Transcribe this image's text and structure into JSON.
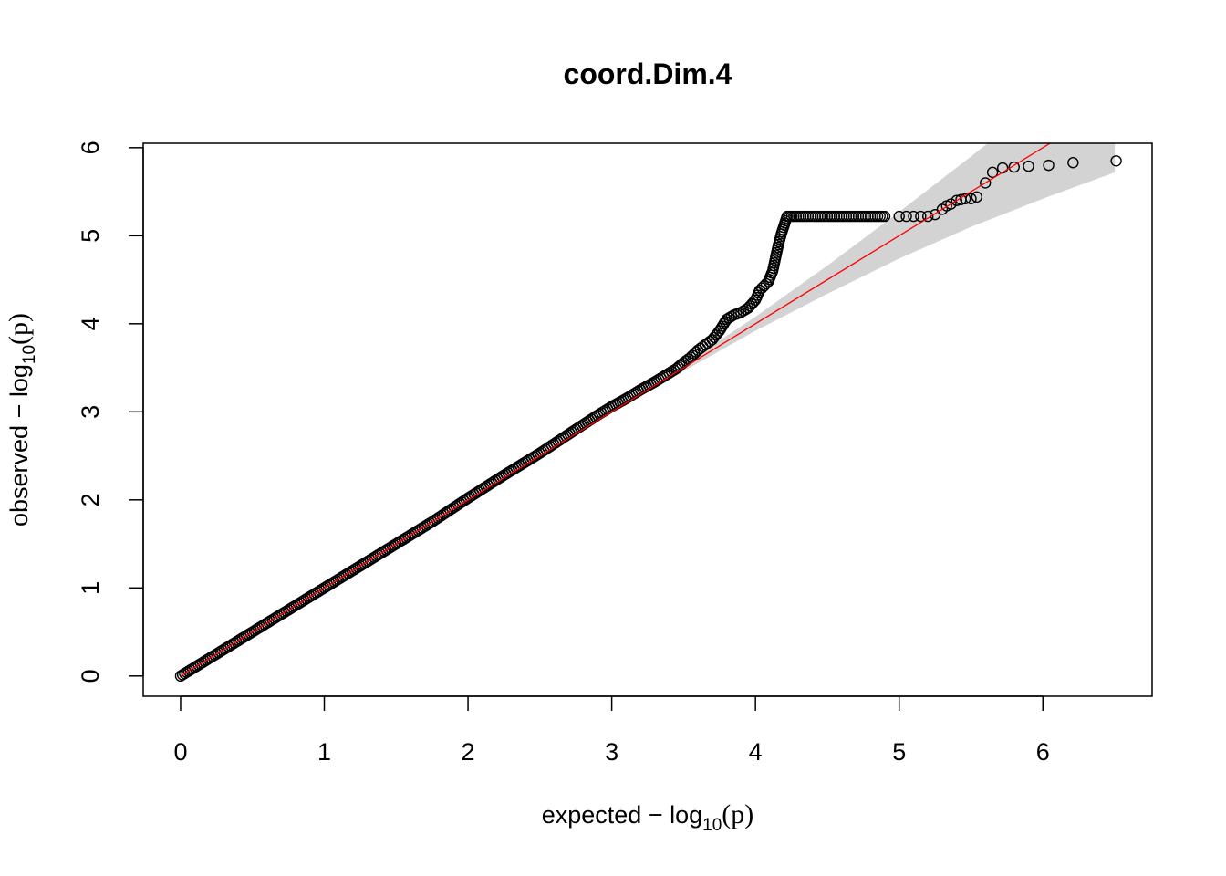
{
  "chart_data": {
    "type": "scatter",
    "title": "coord.Dim.4",
    "xlabel": {
      "prefix": "expected − log",
      "sub": "10",
      "suffix": "(p)"
    },
    "ylabel": {
      "prefix": "observed − log",
      "sub": "10",
      "suffix": "(p)"
    },
    "xlim": [
      -0.26,
      6.76
    ],
    "ylim": [
      -0.23,
      6.05
    ],
    "xticks": [
      "0",
      "1",
      "2",
      "3",
      "4",
      "5",
      "6"
    ],
    "yticks": [
      "0",
      "1",
      "2",
      "3",
      "4",
      "5",
      "6"
    ],
    "reference_line": {
      "from": [
        0,
        0
      ],
      "to": [
        6.8,
        6.8
      ],
      "color": "#ff0000"
    },
    "confidence_band": {
      "color": "#d3d3d3",
      "x": [
        3.4,
        4.0,
        4.5,
        5.0,
        5.5,
        6.0,
        6.5
      ],
      "lower": [
        3.37,
        3.92,
        4.34,
        4.74,
        5.1,
        5.42,
        5.72
      ],
      "upper": [
        3.43,
        4.08,
        4.66,
        5.27,
        5.9,
        6.55,
        7.25
      ]
    },
    "series": [
      {
        "marker": "open-circle",
        "x": [
          0.0,
          0.25,
          0.5,
          0.75,
          1.0,
          1.25,
          1.5,
          1.75,
          2.0,
          2.25,
          2.5,
          2.75,
          2.9,
          3.0,
          3.1,
          3.2,
          3.3,
          3.4,
          3.45,
          3.5,
          3.55,
          3.6,
          3.65,
          3.7,
          3.75,
          3.8,
          3.85,
          3.9,
          3.95,
          4.0,
          4.03,
          4.06,
          4.09,
          4.12,
          4.14,
          4.16,
          4.18,
          4.2,
          4.22,
          4.3,
          4.4,
          4.5,
          4.6,
          4.7,
          4.8,
          4.9,
          5.0,
          5.05,
          5.1,
          5.15,
          5.2,
          5.25,
          5.3,
          5.33,
          5.36,
          5.4,
          5.43,
          5.46,
          5.5,
          5.54,
          5.6,
          5.65,
          5.72,
          5.8,
          5.9,
          6.04,
          6.21,
          6.51
        ],
        "y": [
          0.0,
          0.25,
          0.5,
          0.75,
          1.0,
          1.25,
          1.5,
          1.75,
          2.02,
          2.28,
          2.53,
          2.8,
          2.96,
          3.06,
          3.15,
          3.25,
          3.34,
          3.44,
          3.49,
          3.56,
          3.62,
          3.7,
          3.76,
          3.82,
          3.92,
          4.05,
          4.1,
          4.13,
          4.18,
          4.27,
          4.38,
          4.43,
          4.48,
          4.6,
          4.75,
          4.9,
          5.02,
          5.12,
          5.22,
          5.22,
          5.22,
          5.22,
          5.22,
          5.22,
          5.22,
          5.22,
          5.22,
          5.22,
          5.22,
          5.22,
          5.22,
          5.24,
          5.3,
          5.34,
          5.36,
          5.4,
          5.41,
          5.42,
          5.42,
          5.44,
          5.6,
          5.72,
          5.77,
          5.78,
          5.79,
          5.8,
          5.83,
          5.85
        ]
      }
    ]
  }
}
